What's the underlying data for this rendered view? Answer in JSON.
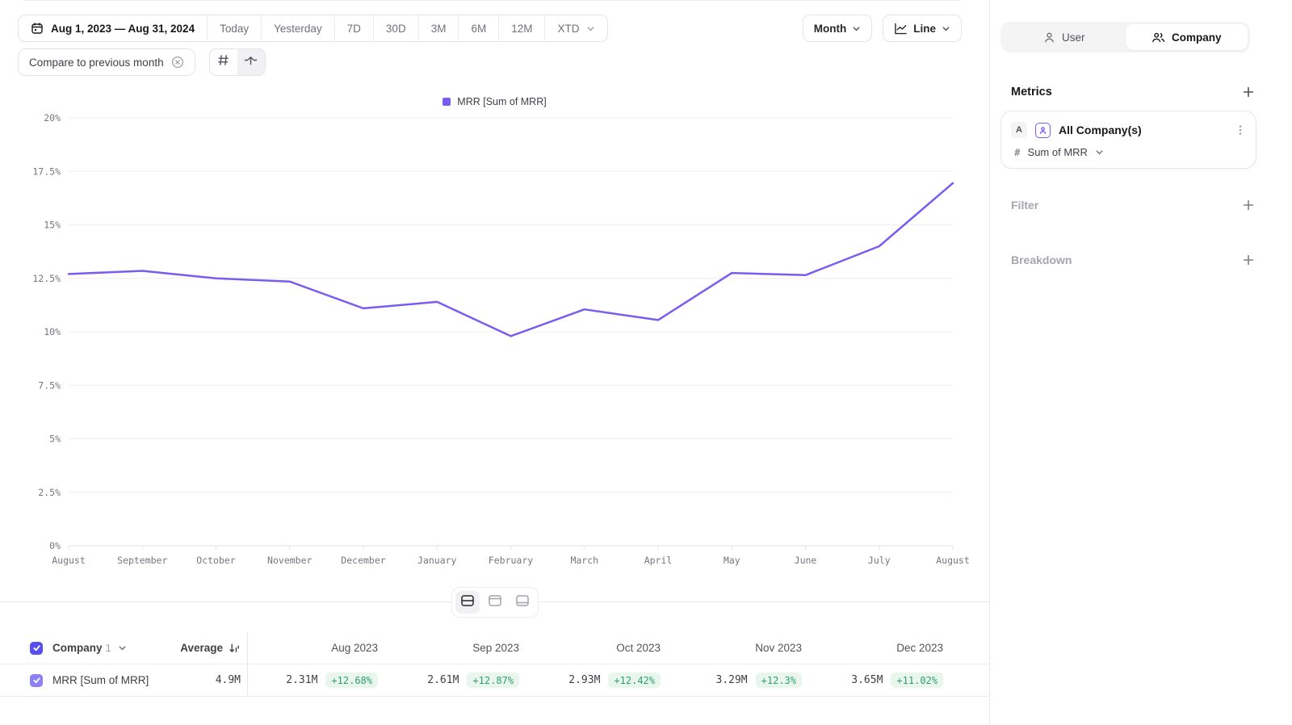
{
  "toolbar": {
    "date_range": "Aug 1, 2023 — Aug 31, 2024",
    "quick_ranges": [
      "Today",
      "Yesterday",
      "7D",
      "30D",
      "3M",
      "6M",
      "12M"
    ],
    "xtd_label": "XTD",
    "compare_chip": "Compare to previous month",
    "granularity": "Month",
    "chart_type": "Line"
  },
  "sidebar": {
    "tabs": {
      "user": "User",
      "company": "Company"
    },
    "metrics_title": "Metrics",
    "metric_card": {
      "badge": "A",
      "name": "All Company(s)",
      "aggregation": "Sum of MRR"
    },
    "filter_label": "Filter",
    "breakdown_label": "Breakdown"
  },
  "chart_data": {
    "type": "line",
    "legend": "MRR [Sum of MRR]",
    "series_color": "#7a5cf0",
    "x": [
      "August",
      "September",
      "October",
      "November",
      "December",
      "January",
      "February",
      "March",
      "April",
      "May",
      "June",
      "July",
      "August"
    ],
    "values": [
      12.7,
      12.85,
      12.5,
      12.35,
      11.1,
      11.4,
      9.8,
      11.05,
      10.55,
      12.75,
      12.65,
      14.0,
      16.95
    ],
    "unit": "%",
    "ylim": [
      0,
      20
    ],
    "yticks": [
      0,
      2.5,
      5,
      7.5,
      10,
      12.5,
      15,
      17.5,
      20
    ],
    "grid": true,
    "legend_position": "top-center"
  },
  "table": {
    "entity_label": "Company",
    "entity_count": "1",
    "average_label": "Average",
    "row_name": "MRR [Sum of MRR]",
    "average_value": "4.9M",
    "columns": [
      {
        "header": "Aug 2023",
        "value": "2.31M",
        "delta": "+12.68%"
      },
      {
        "header": "Sep 2023",
        "value": "2.61M",
        "delta": "+12.87%"
      },
      {
        "header": "Oct 2023",
        "value": "2.93M",
        "delta": "+12.42%"
      },
      {
        "header": "Nov 2023",
        "value": "3.29M",
        "delta": "+12.3%"
      },
      {
        "header": "Dec 2023",
        "value": "3.65M",
        "delta": "+11.02%"
      }
    ]
  }
}
